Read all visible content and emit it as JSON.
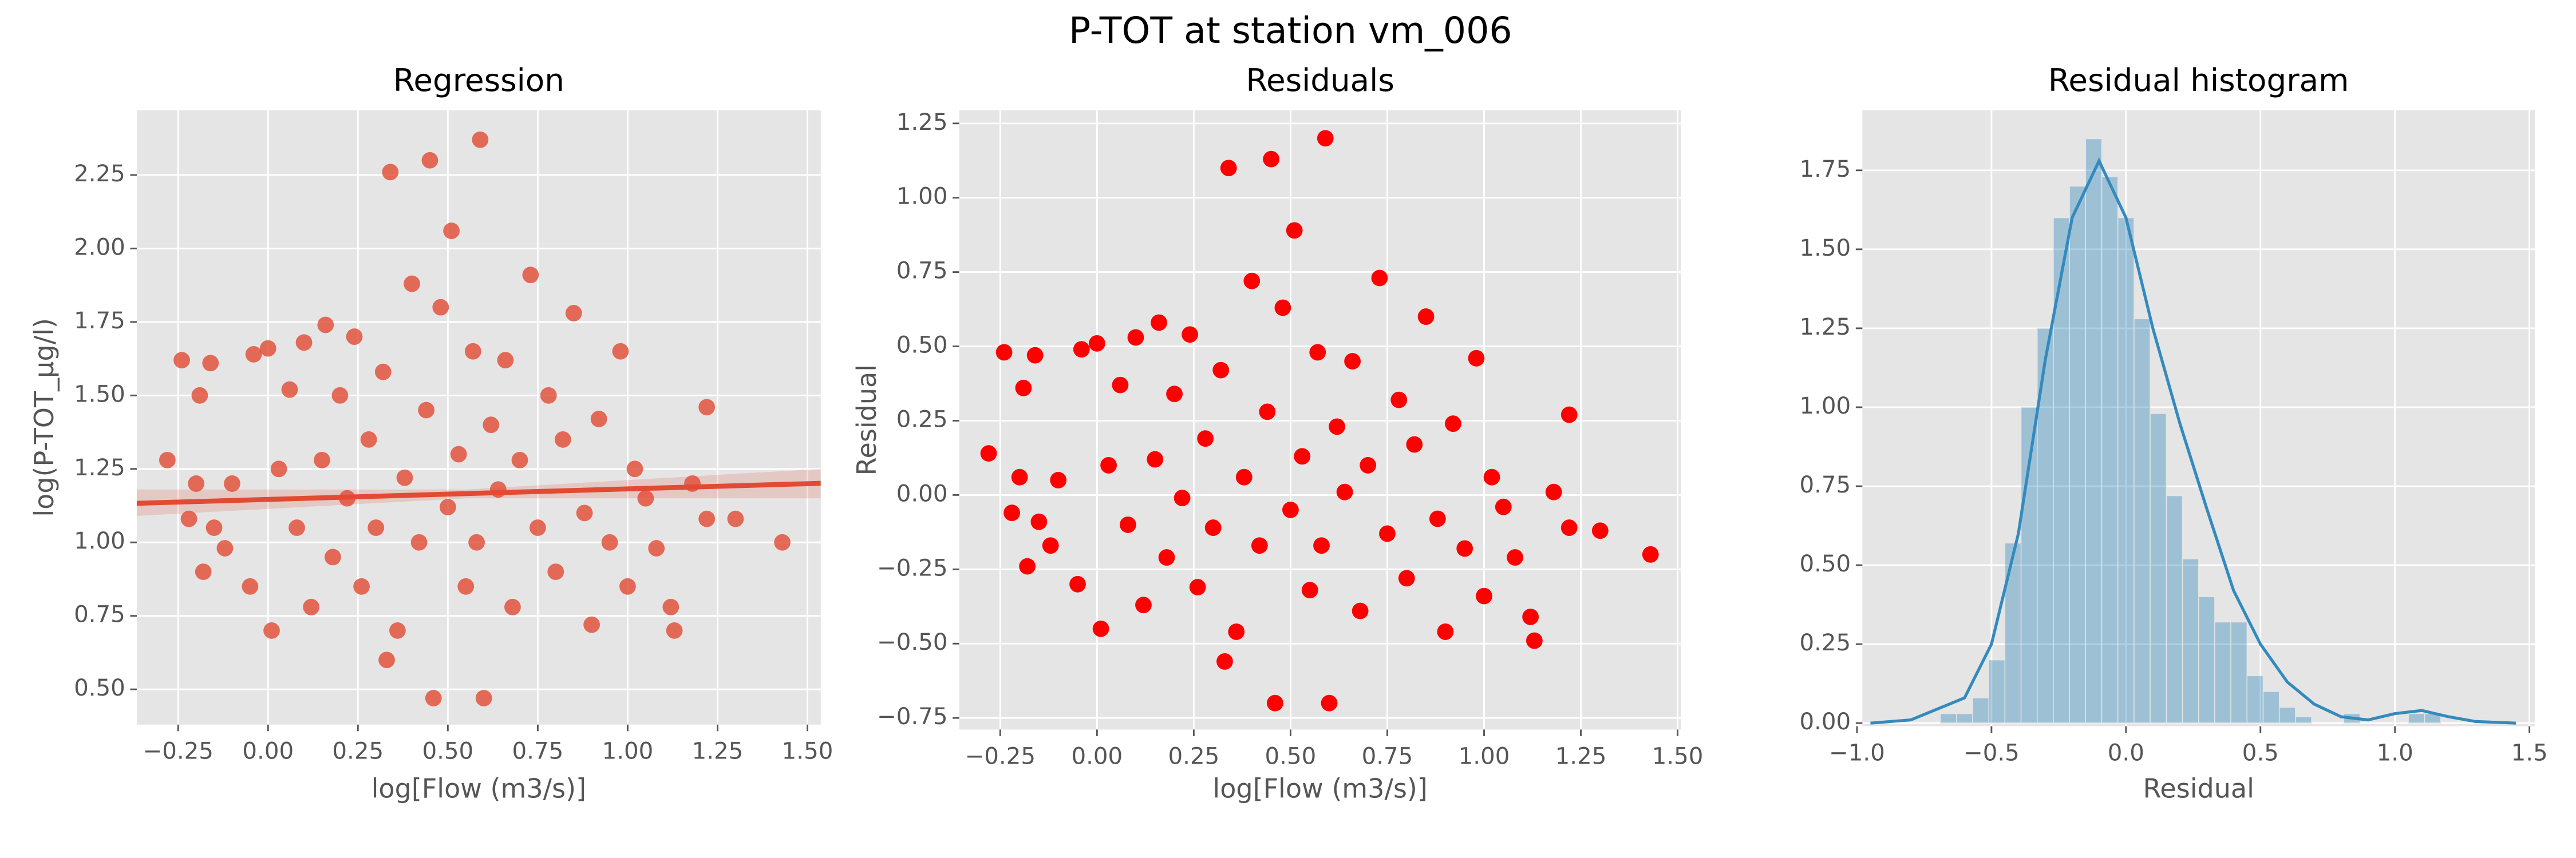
{
  "title": "P-TOT at station vm_006",
  "chart_data": [
    {
      "type": "scatter",
      "title": "Regression",
      "xlabel": "log[Flow (m3/s)]",
      "ylabel": "log(P-TOT_µg/l)",
      "color": "#e24a33",
      "grid": true,
      "xlim": [
        -0.365,
        1.537
      ],
      "ylim": [
        0.38,
        2.47
      ],
      "xticks": [
        {
          "value": -0.25,
          "label": "−0.25"
        },
        {
          "value": 0,
          "label": "0.00"
        },
        {
          "value": 0.25,
          "label": "0.25"
        },
        {
          "value": 0.5,
          "label": "0.50"
        },
        {
          "value": 0.75,
          "label": "0.75"
        },
        {
          "value": 1,
          "label": "1.00"
        },
        {
          "value": 1.25,
          "label": "1.25"
        },
        {
          "value": 1.5,
          "label": "1.50"
        }
      ],
      "yticks": [
        {
          "value": 0.5,
          "label": "0.50"
        },
        {
          "value": 0.75,
          "label": "0.75"
        },
        {
          "value": 1,
          "label": "1.00"
        },
        {
          "value": 1.25,
          "label": "1.25"
        },
        {
          "value": 1.5,
          "label": "1.50"
        },
        {
          "value": 1.75,
          "label": "1.75"
        },
        {
          "value": 2,
          "label": "2.00"
        },
        {
          "value": 2.25,
          "label": "2.25"
        }
      ],
      "x": [
        -0.28,
        -0.24,
        -0.22,
        -0.2,
        -0.19,
        -0.18,
        -0.16,
        -0.15,
        -0.12,
        -0.1,
        -0.05,
        -0.04,
        0.0,
        0.01,
        0.03,
        0.06,
        0.08,
        0.1,
        0.12,
        0.15,
        0.16,
        0.18,
        0.2,
        0.22,
        0.24,
        0.26,
        0.28,
        0.3,
        0.32,
        0.33,
        0.34,
        0.36,
        0.38,
        0.4,
        0.42,
        0.44,
        0.45,
        0.46,
        0.48,
        0.5,
        0.51,
        0.53,
        0.55,
        0.57,
        0.58,
        0.59,
        0.6,
        0.62,
        0.64,
        0.66,
        0.68,
        0.7,
        0.73,
        0.75,
        0.78,
        0.8,
        0.82,
        0.85,
        0.88,
        0.9,
        0.92,
        0.95,
        0.98,
        1.0,
        1.02,
        1.05,
        1.08,
        1.12,
        1.13,
        1.18,
        1.22,
        1.22,
        1.3,
        1.43
      ],
      "values": [
        1.28,
        1.62,
        1.08,
        1.2,
        1.5,
        0.9,
        1.61,
        1.05,
        0.98,
        1.2,
        0.85,
        1.64,
        1.66,
        0.7,
        1.25,
        1.52,
        1.05,
        1.68,
        0.78,
        1.28,
        1.74,
        0.95,
        1.5,
        1.15,
        1.7,
        0.85,
        1.35,
        1.05,
        1.58,
        0.6,
        2.26,
        0.7,
        1.22,
        1.88,
        1.0,
        1.45,
        2.3,
        0.47,
        1.8,
        1.12,
        2.06,
        1.3,
        0.85,
        1.65,
        1.0,
        2.37,
        0.47,
        1.4,
        1.18,
        1.62,
        0.78,
        1.28,
        1.91,
        1.05,
        1.5,
        0.9,
        1.35,
        1.78,
        1.1,
        0.72,
        1.42,
        1.0,
        1.65,
        0.85,
        1.25,
        1.15,
        0.98,
        0.78,
        0.7,
        1.2,
        1.46,
        1.08,
        1.08,
        1.0
      ],
      "regression": {
        "color": "#e24a33",
        "x": [
          -0.365,
          0.55,
          1.537
        ],
        "y": [
          1.133,
          1.166,
          1.201
        ],
        "ci_lower": [
          1.09,
          1.15,
          1.15
        ],
        "ci_upper": [
          1.18,
          1.18,
          1.25
        ]
      }
    },
    {
      "type": "scatter",
      "title": "Residuals",
      "xlabel": "log[Flow (m3/s)]",
      "ylabel": "Residual",
      "color": "#ff0000",
      "grid": true,
      "xlim": [
        -0.356,
        1.509
      ],
      "ylim": [
        -0.789,
        1.294
      ],
      "xticks": [
        {
          "value": -0.25,
          "label": "−0.25"
        },
        {
          "value": 0,
          "label": "0.00"
        },
        {
          "value": 0.25,
          "label": "0.25"
        },
        {
          "value": 0.5,
          "label": "0.50"
        },
        {
          "value": 0.75,
          "label": "0.75"
        },
        {
          "value": 1,
          "label": "1.00"
        },
        {
          "value": 1.25,
          "label": "1.25"
        },
        {
          "value": 1.5,
          "label": "1.50"
        }
      ],
      "yticks": [
        {
          "value": -0.75,
          "label": "−0.75"
        },
        {
          "value": -0.5,
          "label": "−0.50"
        },
        {
          "value": -0.25,
          "label": "−0.25"
        },
        {
          "value": 0,
          "label": "0.00"
        },
        {
          "value": 0.25,
          "label": "0.25"
        },
        {
          "value": 0.5,
          "label": "0.50"
        },
        {
          "value": 0.75,
          "label": "0.75"
        },
        {
          "value": 1,
          "label": "1.00"
        },
        {
          "value": 1.25,
          "label": "1.25"
        }
      ],
      "x": [
        -0.28,
        -0.24,
        -0.22,
        -0.2,
        -0.19,
        -0.18,
        -0.16,
        -0.15,
        -0.12,
        -0.1,
        -0.05,
        -0.04,
        0.0,
        0.01,
        0.03,
        0.06,
        0.08,
        0.1,
        0.12,
        0.15,
        0.16,
        0.18,
        0.2,
        0.22,
        0.24,
        0.26,
        0.28,
        0.3,
        0.32,
        0.33,
        0.34,
        0.36,
        0.38,
        0.4,
        0.42,
        0.44,
        0.45,
        0.46,
        0.48,
        0.5,
        0.51,
        0.53,
        0.55,
        0.57,
        0.58,
        0.59,
        0.6,
        0.62,
        0.64,
        0.66,
        0.68,
        0.7,
        0.73,
        0.75,
        0.78,
        0.8,
        0.82,
        0.85,
        0.88,
        0.9,
        0.92,
        0.95,
        0.98,
        1.0,
        1.02,
        1.05,
        1.08,
        1.12,
        1.13,
        1.18,
        1.22,
        1.22,
        1.3,
        1.43
      ],
      "values": [
        0.14,
        0.48,
        -0.06,
        0.06,
        0.36,
        -0.24,
        0.47,
        -0.09,
        -0.17,
        0.05,
        -0.3,
        0.49,
        0.51,
        -0.45,
        0.1,
        0.37,
        -0.1,
        0.53,
        -0.37,
        0.12,
        0.58,
        -0.21,
        0.34,
        -0.01,
        0.54,
        -0.31,
        0.19,
        -0.11,
        0.42,
        -0.56,
        1.1,
        -0.46,
        0.06,
        0.72,
        -0.17,
        0.28,
        1.13,
        -0.7,
        0.63,
        -0.05,
        0.89,
        0.13,
        -0.32,
        0.48,
        -0.17,
        1.2,
        -0.7,
        0.23,
        0.01,
        0.45,
        -0.39,
        0.1,
        0.73,
        -0.13,
        0.32,
        -0.28,
        0.17,
        0.6,
        -0.08,
        -0.46,
        0.24,
        -0.18,
        0.46,
        -0.34,
        0.06,
        -0.04,
        -0.21,
        -0.41,
        -0.49,
        0.01,
        0.27,
        -0.11,
        -0.12,
        -0.2
      ]
    },
    {
      "type": "histogram",
      "title": "Residual histogram",
      "xlabel": "Residual",
      "color": "#348abd",
      "grid": true,
      "xlim": [
        -0.98,
        1.52
      ],
      "ylim": [
        -0.01,
        1.94
      ],
      "xticks": [
        {
          "value": -1,
          "label": "−1.0"
        },
        {
          "value": -0.5,
          "label": "−0.5"
        },
        {
          "value": 0,
          "label": "0.0"
        },
        {
          "value": 0.5,
          "label": "0.5"
        },
        {
          "value": 1,
          "label": "1.0"
        },
        1.5
      ],
      "yticks": [
        {
          "value": 0,
          "label": "0.00"
        },
        0.25,
        {
          "value": 0.5,
          "label": "0.50"
        },
        0.75,
        {
          "value": 1,
          "label": "1.00"
        },
        1.25,
        {
          "value": 1.5,
          "label": "1.50"
        },
        1.75
      ],
      "bins": [
        -0.69,
        -0.63,
        -0.57,
        -0.51,
        -0.45,
        -0.39,
        -0.33,
        -0.27,
        -0.21,
        -0.15,
        -0.09,
        -0.03,
        0.03,
        0.09,
        0.15,
        0.21,
        0.27,
        0.33,
        0.39,
        0.45,
        0.51,
        0.57,
        0.63,
        0.69,
        0.75,
        0.81,
        0.87,
        0.93,
        0.99,
        1.05,
        1.11,
        1.17,
        1.23
      ],
      "values": [
        0.03,
        0.03,
        0.08,
        0.2,
        0.57,
        1.0,
        1.25,
        1.6,
        1.7,
        1.85,
        1.73,
        1.6,
        1.28,
        0.98,
        0.72,
        0.52,
        0.4,
        0.32,
        0.32,
        0.15,
        0.1,
        0.05,
        0.02,
        0.0,
        0.0,
        0.03,
        0.0,
        0.0,
        0.0,
        0.03,
        0.03,
        0.0
      ],
      "kde": {
        "color": "#348abd",
        "x": [
          -0.95,
          -0.8,
          -0.6,
          -0.5,
          -0.4,
          -0.3,
          -0.2,
          -0.1,
          0,
          0.1,
          0.2,
          0.3,
          0.4,
          0.5,
          0.6,
          0.7,
          0.8,
          0.9,
          1.0,
          1.1,
          1.2,
          1.3,
          1.45
        ],
        "y": [
          0,
          0.01,
          0.08,
          0.25,
          0.6,
          1.15,
          1.6,
          1.78,
          1.6,
          1.25,
          0.95,
          0.68,
          0.42,
          0.25,
          0.13,
          0.06,
          0.02,
          0.01,
          0.03,
          0.04,
          0.02,
          0.005,
          0
        ]
      }
    }
  ]
}
